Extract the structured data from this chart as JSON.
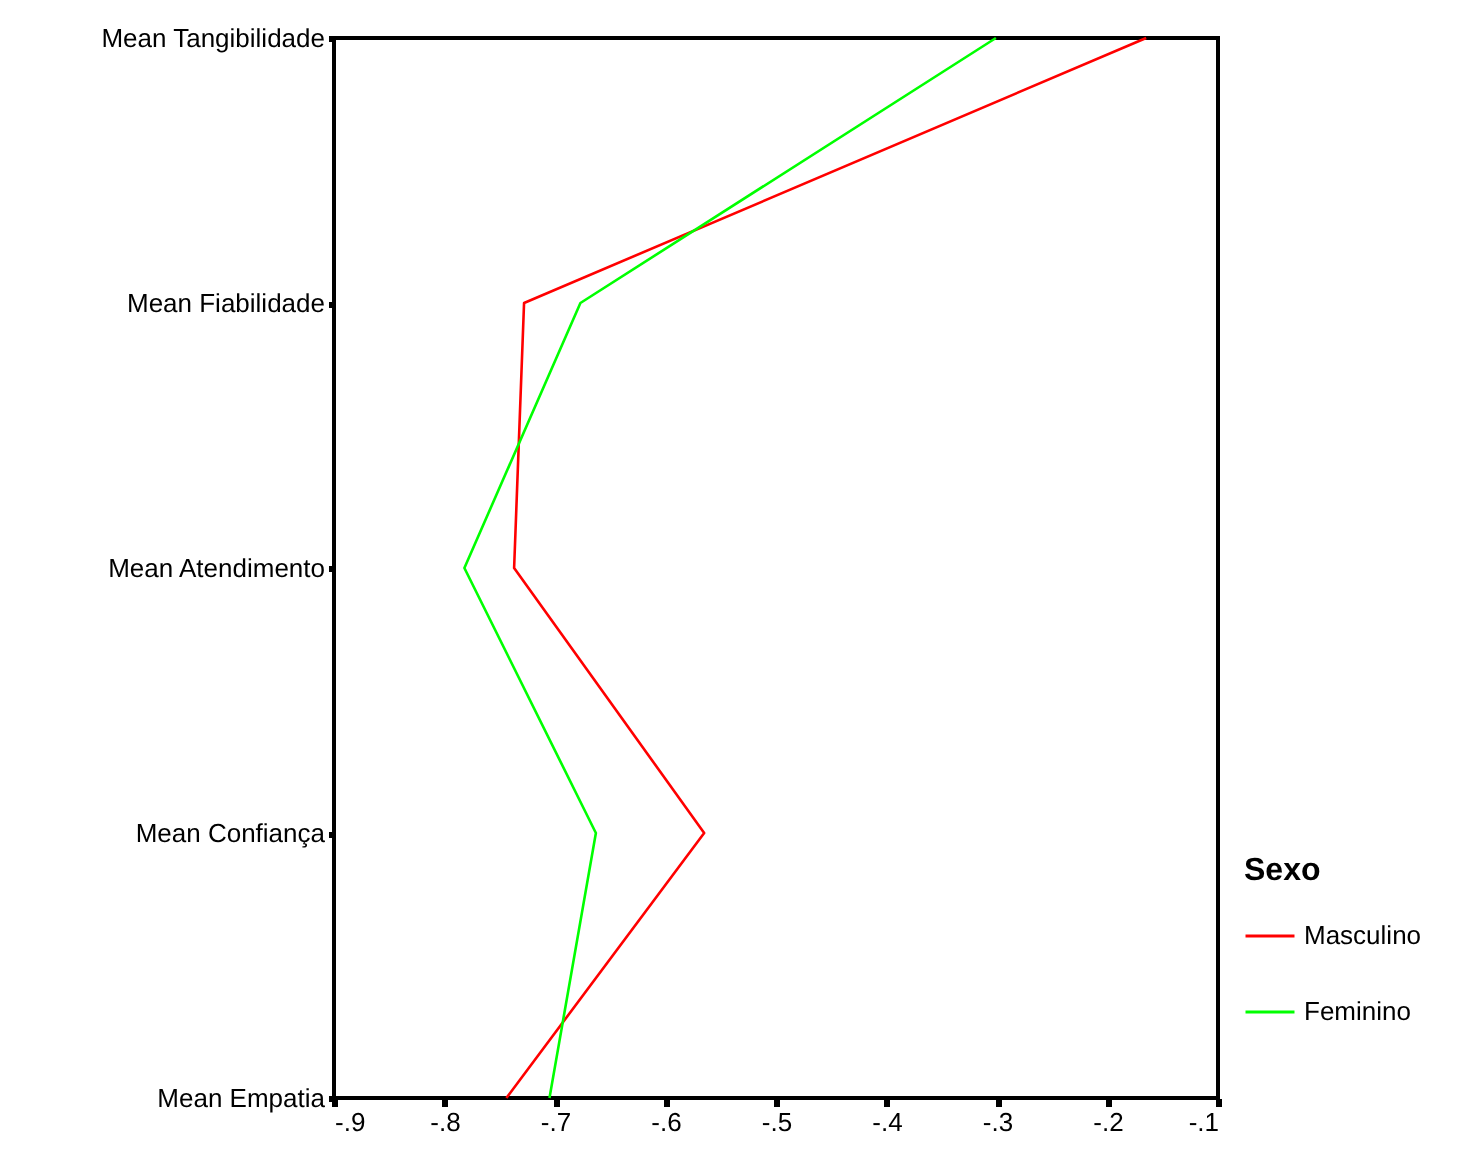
{
  "chart_data": {
    "type": "line",
    "orientation": "horizontal",
    "categories": [
      "Mean Tangibilidade",
      "Mean Fiabilidade",
      "Mean Atendimento",
      "Mean Confiança",
      "Mean Empatia"
    ],
    "series": [
      {
        "name": "Masculino",
        "color": "#ff0000",
        "values": [
          -0.165,
          -0.728,
          -0.737,
          -0.565,
          -0.744
        ]
      },
      {
        "name": "Feminino",
        "color": "#00ff00",
        "values": [
          -0.301,
          -0.677,
          -0.782,
          -0.663,
          -0.705
        ]
      }
    ],
    "xlim": [
      -0.9,
      -0.1
    ],
    "xticks": [
      {
        "value": -0.9,
        "label": "-.9"
      },
      {
        "value": -0.8,
        "label": "-.8"
      },
      {
        "value": -0.7,
        "label": "-.7"
      },
      {
        "value": -0.6,
        "label": "-.6"
      },
      {
        "value": -0.5,
        "label": "-.5"
      },
      {
        "value": -0.4,
        "label": "-.4"
      },
      {
        "value": -0.3,
        "label": "-.3"
      },
      {
        "value": -0.2,
        "label": "-.2"
      },
      {
        "value": -0.1,
        "label": "-.1"
      }
    ],
    "legend_title": "Sexo",
    "legend": "bottom right",
    "grid": false
  }
}
